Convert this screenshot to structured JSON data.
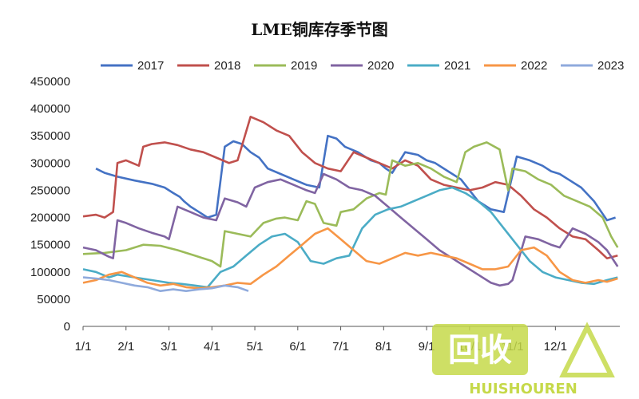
{
  "chart_data": {
    "type": "line",
    "title": "LME铜库存季节图",
    "xlabel": "",
    "ylabel": "",
    "ylim": [
      0,
      450000
    ],
    "yticks": [
      0,
      50000,
      100000,
      150000,
      200000,
      250000,
      300000,
      350000,
      400000,
      450000
    ],
    "ytick_labels": [
      "0",
      "50000",
      "100000",
      "150000",
      "200000",
      "250000",
      "300000",
      "350000",
      "400000",
      "450000"
    ],
    "xlim": [
      0,
      12.5
    ],
    "xticks": [
      0,
      1,
      2,
      3,
      4,
      5,
      6,
      7,
      8,
      9,
      10,
      11
    ],
    "xtick_labels": [
      "1/1",
      "2/1",
      "3/1",
      "4/1",
      "5/1",
      "6/1",
      "7/1",
      "8/1",
      "9/1",
      "10/1",
      "11/1",
      "12/1"
    ],
    "grid": false,
    "legend_position": "top",
    "series": [
      {
        "name": "2017",
        "color": "#4472c4",
        "x": [
          0.3,
          0.5,
          0.8,
          1.2,
          1.6,
          1.9,
          2.1,
          2.25,
          2.35,
          2.5,
          2.7,
          2.9,
          3.1,
          3.3,
          3.5,
          3.7,
          3.9,
          4.1,
          4.2,
          4.3,
          4.6,
          4.9,
          5.2,
          5.5,
          5.7,
          5.9,
          6.1,
          6.4,
          6.7,
          6.9,
          7.05,
          7.2,
          7.5,
          7.8,
          8.0,
          8.2,
          8.5,
          8.8,
          9.0,
          9.2,
          9.5,
          9.8,
          10.1,
          10.4,
          10.7,
          10.9,
          11.1,
          11.3,
          11.6,
          11.9,
          12.2,
          12.4
        ],
        "y": [
          290000,
          282000,
          275000,
          268000,
          262000,
          255000,
          245000,
          238000,
          230000,
          220000,
          210000,
          200000,
          205000,
          330000,
          340000,
          335000,
          320000,
          310000,
          300000,
          290000,
          280000,
          270000,
          260000,
          255000,
          350000,
          345000,
          330000,
          320000,
          305000,
          300000,
          290000,
          282000,
          320000,
          315000,
          305000,
          300000,
          285000,
          270000,
          250000,
          230000,
          215000,
          210000,
          312000,
          305000,
          295000,
          285000,
          280000,
          270000,
          255000,
          230000,
          195000,
          200000
        ]
      },
      {
        "name": "2018",
        "color": "#c0504d",
        "x": [
          0,
          0.3,
          0.5,
          0.7,
          0.8,
          1.0,
          1.3,
          1.4,
          1.6,
          1.9,
          2.2,
          2.5,
          2.8,
          3.1,
          3.4,
          3.6,
          3.9,
          4.2,
          4.5,
          4.8,
          5.1,
          5.4,
          5.7,
          6.0,
          6.3,
          6.6,
          6.9,
          7.2,
          7.5,
          7.8,
          8.1,
          8.4,
          8.7,
          9.0,
          9.3,
          9.6,
          9.9,
          10.2,
          10.5,
          10.8,
          11.1,
          11.4,
          11.7,
          12.0,
          12.2,
          12.45
        ],
        "y": [
          202000,
          205000,
          200000,
          210000,
          300000,
          305000,
          295000,
          330000,
          335000,
          338000,
          333000,
          325000,
          320000,
          310000,
          300000,
          305000,
          385000,
          375000,
          360000,
          350000,
          320000,
          300000,
          290000,
          285000,
          320000,
          310000,
          300000,
          290000,
          305000,
          295000,
          270000,
          260000,
          255000,
          250000,
          255000,
          265000,
          260000,
          240000,
          215000,
          200000,
          180000,
          165000,
          160000,
          140000,
          125000,
          130000
        ]
      },
      {
        "name": "2019",
        "color": "#9bbb59",
        "x": [
          0,
          0.5,
          1.0,
          1.4,
          1.8,
          2.2,
          2.6,
          3.0,
          3.2,
          3.3,
          3.6,
          3.9,
          4.2,
          4.5,
          4.7,
          5.0,
          5.2,
          5.4,
          5.6,
          5.9,
          6.0,
          6.3,
          6.6,
          6.9,
          7.05,
          7.2,
          7.5,
          7.8,
          8.1,
          8.4,
          8.7,
          8.9,
          9.1,
          9.4,
          9.7,
          9.9,
          10.0,
          10.3,
          10.6,
          10.9,
          11.2,
          11.5,
          11.8,
          12.1,
          12.3,
          12.45
        ],
        "y": [
          133000,
          135000,
          140000,
          150000,
          148000,
          140000,
          130000,
          120000,
          110000,
          175000,
          170000,
          165000,
          190000,
          198000,
          200000,
          195000,
          230000,
          225000,
          190000,
          185000,
          210000,
          215000,
          235000,
          245000,
          242000,
          305000,
          295000,
          300000,
          290000,
          275000,
          265000,
          320000,
          330000,
          338000,
          325000,
          250000,
          290000,
          285000,
          270000,
          260000,
          240000,
          230000,
          220000,
          200000,
          165000,
          145000
        ]
      },
      {
        "name": "2020",
        "color": "#8064a2",
        "x": [
          0,
          0.3,
          0.6,
          0.7,
          0.8,
          1.0,
          1.3,
          1.6,
          1.9,
          2.0,
          2.2,
          2.5,
          2.8,
          3.1,
          3.3,
          3.6,
          3.8,
          4.0,
          4.3,
          4.6,
          4.9,
          5.2,
          5.4,
          5.6,
          5.9,
          6.2,
          6.5,
          6.8,
          7.1,
          7.4,
          7.7,
          8.0,
          8.3,
          8.6,
          8.9,
          9.2,
          9.5,
          9.7,
          9.9,
          10.0,
          10.3,
          10.6,
          10.9,
          11.1,
          11.4,
          11.7,
          12.0,
          12.2,
          12.45
        ],
        "y": [
          145000,
          140000,
          128000,
          125000,
          195000,
          190000,
          180000,
          172000,
          165000,
          160000,
          220000,
          210000,
          200000,
          195000,
          235000,
          228000,
          220000,
          255000,
          265000,
          270000,
          260000,
          250000,
          245000,
          280000,
          270000,
          255000,
          250000,
          240000,
          220000,
          200000,
          180000,
          160000,
          140000,
          125000,
          110000,
          95000,
          80000,
          75000,
          78000,
          85000,
          165000,
          160000,
          150000,
          145000,
          180000,
          170000,
          155000,
          140000,
          110000
        ]
      },
      {
        "name": "2021",
        "color": "#4bacc6",
        "x": [
          0,
          0.3,
          0.6,
          0.8,
          1.2,
          1.6,
          2.0,
          2.3,
          2.6,
          2.9,
          3.2,
          3.5,
          3.8,
          4.1,
          4.4,
          4.7,
          5.0,
          5.3,
          5.6,
          5.9,
          6.2,
          6.5,
          6.8,
          7.1,
          7.4,
          7.7,
          8.0,
          8.3,
          8.6,
          8.9,
          9.2,
          9.5,
          9.8,
          10.1,
          10.4,
          10.7,
          11.0,
          11.3,
          11.6,
          11.9,
          12.2,
          12.45
        ],
        "y": [
          105000,
          100000,
          90000,
          95000,
          90000,
          85000,
          80000,
          78000,
          75000,
          72000,
          100000,
          110000,
          130000,
          150000,
          165000,
          170000,
          155000,
          120000,
          115000,
          125000,
          130000,
          180000,
          205000,
          215000,
          220000,
          230000,
          240000,
          250000,
          255000,
          245000,
          230000,
          210000,
          180000,
          150000,
          120000,
          100000,
          90000,
          85000,
          80000,
          78000,
          85000,
          90000
        ]
      },
      {
        "name": "2022",
        "color": "#f79646",
        "x": [
          0,
          0.3,
          0.6,
          0.9,
          1.2,
          1.5,
          1.8,
          2.1,
          2.4,
          2.7,
          3.0,
          3.3,
          3.6,
          3.9,
          4.2,
          4.5,
          4.8,
          5.1,
          5.4,
          5.7,
          6.0,
          6.3,
          6.6,
          6.9,
          7.2,
          7.5,
          7.8,
          8.1,
          8.4,
          8.7,
          9.0,
          9.3,
          9.6,
          9.9,
          10.2,
          10.5,
          10.8,
          11.1,
          11.4,
          11.7,
          12.0,
          12.2,
          12.45
        ],
        "y": [
          80000,
          85000,
          95000,
          100000,
          90000,
          80000,
          75000,
          78000,
          72000,
          70000,
          72000,
          75000,
          80000,
          78000,
          95000,
          110000,
          130000,
          150000,
          170000,
          180000,
          160000,
          140000,
          120000,
          115000,
          125000,
          135000,
          130000,
          135000,
          130000,
          125000,
          115000,
          105000,
          105000,
          110000,
          140000,
          145000,
          130000,
          100000,
          85000,
          80000,
          85000,
          82000,
          88000
        ]
      },
      {
        "name": "2023",
        "color": "#8faadc",
        "x": [
          0,
          0.3,
          0.6,
          0.9,
          1.2,
          1.5,
          1.8,
          2.1,
          2.4,
          2.7,
          3.0,
          3.3,
          3.6,
          3.85
        ],
        "y": [
          90000,
          88000,
          85000,
          80000,
          75000,
          72000,
          65000,
          68000,
          65000,
          68000,
          70000,
          75000,
          72000,
          65000
        ]
      }
    ]
  },
  "watermark": {
    "chinese": "回收",
    "latin": "HUISHOUREN"
  }
}
